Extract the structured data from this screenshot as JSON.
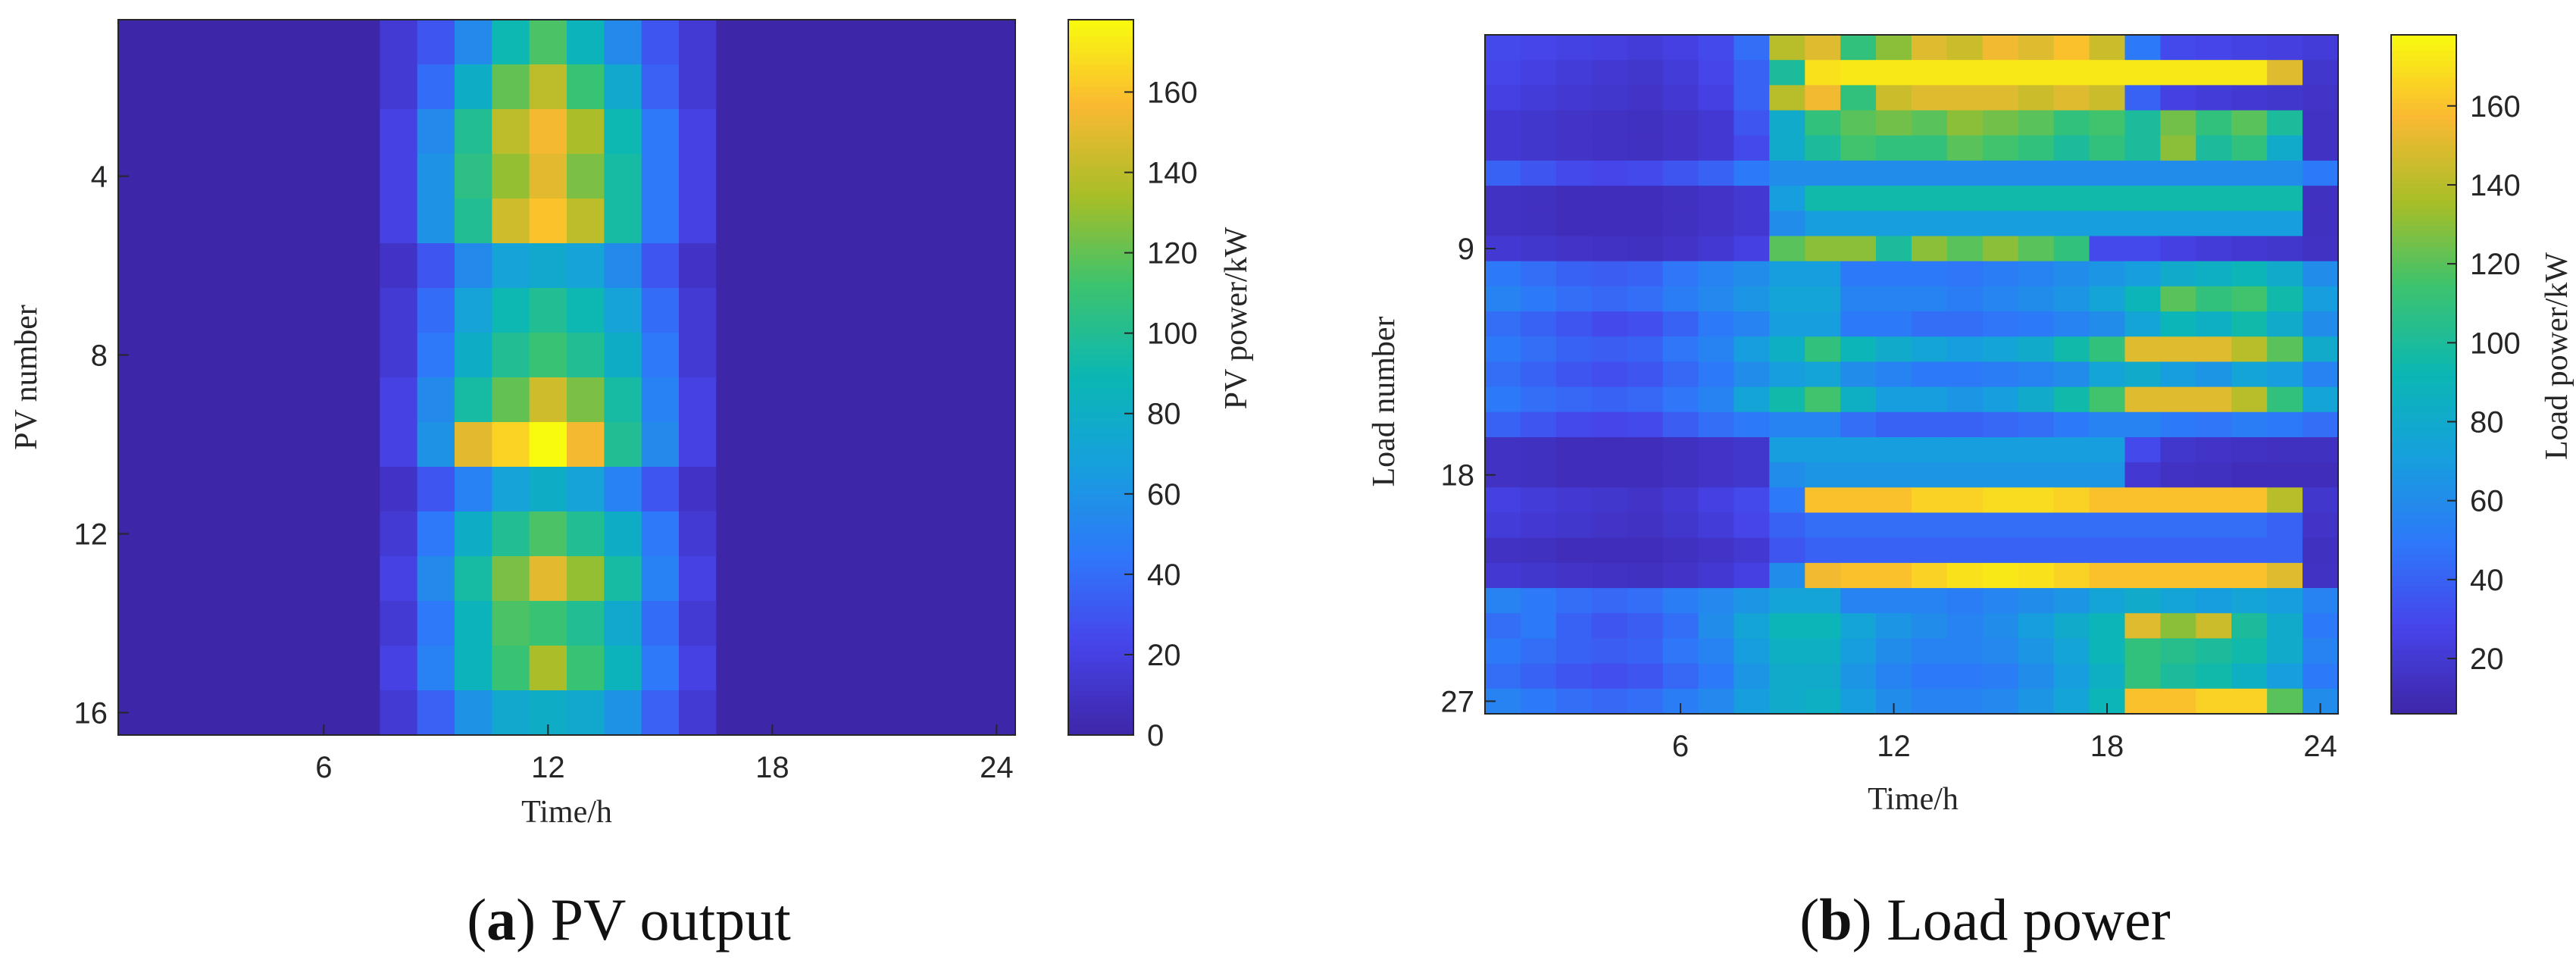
{
  "chart_data": [
    {
      "id": "a",
      "type": "heatmap",
      "caption_letter": "a",
      "caption_open": "(",
      "caption_close": ")",
      "caption_text": " PV output",
      "xlabel": "Time/h",
      "ylabel": "PV number",
      "colorbar_label": "PV power/kW",
      "xlim": [
        0.5,
        24.5
      ],
      "ylim": [
        0.5,
        16.5
      ],
      "xticks": [
        6,
        12,
        18,
        24
      ],
      "yticks": [
        4,
        8,
        12,
        16
      ],
      "color_range": [
        0,
        178
      ],
      "colorbar_ticks": [
        0,
        20,
        40,
        60,
        80,
        100,
        120,
        140,
        160
      ],
      "hours": [
        1,
        2,
        3,
        4,
        5,
        6,
        7,
        8,
        9,
        10,
        11,
        12,
        13,
        14,
        15,
        16,
        17,
        18,
        19,
        20,
        21,
        22,
        23,
        24
      ],
      "rows": [
        [
          0,
          0,
          0,
          0,
          0,
          0,
          0,
          15,
          30,
          55,
          90,
          115,
          85,
          55,
          30,
          15,
          0,
          0,
          0,
          0,
          0,
          0,
          0,
          0
        ],
        [
          0,
          0,
          0,
          0,
          0,
          0,
          0,
          15,
          40,
          80,
          120,
          140,
          110,
          75,
          35,
          15,
          0,
          0,
          0,
          0,
          0,
          0,
          0,
          0
        ],
        [
          0,
          0,
          0,
          0,
          0,
          0,
          0,
          20,
          55,
          100,
          140,
          155,
          135,
          90,
          45,
          20,
          0,
          0,
          0,
          0,
          0,
          0,
          0,
          0
        ],
        [
          0,
          0,
          0,
          0,
          0,
          0,
          0,
          20,
          60,
          105,
          130,
          150,
          125,
          95,
          45,
          20,
          0,
          0,
          0,
          0,
          0,
          0,
          0,
          0
        ],
        [
          0,
          0,
          0,
          0,
          0,
          0,
          0,
          20,
          60,
          100,
          145,
          160,
          140,
          95,
          45,
          20,
          0,
          0,
          0,
          0,
          0,
          0,
          0,
          0
        ],
        [
          0,
          0,
          0,
          0,
          0,
          0,
          0,
          10,
          30,
          55,
          70,
          75,
          70,
          55,
          30,
          10,
          0,
          0,
          0,
          0,
          0,
          0,
          0,
          0
        ],
        [
          0,
          0,
          0,
          0,
          0,
          0,
          0,
          15,
          40,
          70,
          90,
          100,
          90,
          70,
          40,
          15,
          0,
          0,
          0,
          0,
          0,
          0,
          0,
          0
        ],
        [
          0,
          0,
          0,
          0,
          0,
          0,
          0,
          15,
          45,
          80,
          100,
          110,
          100,
          80,
          45,
          15,
          0,
          0,
          0,
          0,
          0,
          0,
          0,
          0
        ],
        [
          0,
          0,
          0,
          0,
          0,
          0,
          0,
          20,
          55,
          95,
          120,
          145,
          125,
          95,
          50,
          20,
          0,
          0,
          0,
          0,
          0,
          0,
          0,
          0
        ],
        [
          0,
          0,
          0,
          0,
          0,
          0,
          0,
          20,
          60,
          150,
          165,
          178,
          155,
          100,
          55,
          20,
          0,
          0,
          0,
          0,
          0,
          0,
          0,
          0
        ],
        [
          0,
          0,
          0,
          0,
          0,
          0,
          0,
          10,
          30,
          50,
          70,
          80,
          70,
          50,
          30,
          10,
          0,
          0,
          0,
          0,
          0,
          0,
          0,
          0
        ],
        [
          0,
          0,
          0,
          0,
          0,
          0,
          0,
          15,
          45,
          80,
          100,
          115,
          100,
          80,
          45,
          15,
          0,
          0,
          0,
          0,
          0,
          0,
          0,
          0
        ],
        [
          0,
          0,
          0,
          0,
          0,
          0,
          0,
          20,
          55,
          95,
          125,
          150,
          130,
          95,
          50,
          20,
          0,
          0,
          0,
          0,
          0,
          0,
          0,
          0
        ],
        [
          0,
          0,
          0,
          0,
          0,
          0,
          0,
          15,
          45,
          85,
          115,
          110,
          100,
          75,
          40,
          15,
          0,
          0,
          0,
          0,
          0,
          0,
          0,
          0
        ],
        [
          0,
          0,
          0,
          0,
          0,
          0,
          0,
          20,
          50,
          85,
          110,
          135,
          110,
          85,
          45,
          20,
          0,
          0,
          0,
          0,
          0,
          0,
          0,
          0
        ],
        [
          0,
          0,
          0,
          0,
          0,
          0,
          0,
          15,
          35,
          60,
          75,
          80,
          75,
          60,
          35,
          15,
          0,
          0,
          0,
          0,
          0,
          0,
          0,
          0
        ]
      ]
    },
    {
      "id": "b",
      "type": "heatmap",
      "caption_letter": "b",
      "caption_open": "(",
      "caption_close": ")",
      "caption_text": " Load power",
      "xlabel": "Time/h",
      "ylabel": "Load number",
      "colorbar_label": "Load power/kW",
      "xlim": [
        0.5,
        24.5
      ],
      "ylim": [
        0.5,
        27.5
      ],
      "xticks": [
        6,
        12,
        18,
        24
      ],
      "yticks": [
        9,
        18,
        27
      ],
      "color_range": [
        6,
        178
      ],
      "colorbar_ticks": [
        20,
        40,
        60,
        80,
        100,
        120,
        140,
        160
      ],
      "hours": [
        1,
        2,
        3,
        4,
        5,
        6,
        7,
        8,
        9,
        10,
        11,
        12,
        13,
        14,
        15,
        16,
        17,
        18,
        19,
        20,
        21,
        22,
        23,
        24
      ],
      "rows": [
        [
          30,
          28,
          26,
          24,
          22,
          25,
          30,
          45,
          140,
          150,
          110,
          130,
          150,
          145,
          155,
          150,
          160,
          145,
          50,
          30,
          28,
          26,
          24,
          22
        ],
        [
          28,
          25,
          22,
          20,
          18,
          22,
          28,
          40,
          100,
          170,
          172,
          172,
          172,
          172,
          172,
          172,
          172,
          172,
          172,
          172,
          172,
          172,
          150,
          18
        ],
        [
          25,
          22,
          20,
          18,
          16,
          20,
          25,
          40,
          140,
          155,
          110,
          145,
          150,
          150,
          150,
          145,
          150,
          145,
          40,
          25,
          22,
          20,
          18,
          16
        ],
        [
          20,
          18,
          16,
          15,
          14,
          16,
          20,
          35,
          80,
          110,
          120,
          125,
          120,
          130,
          125,
          120,
          110,
          115,
          100,
          125,
          110,
          120,
          100,
          15
        ],
        [
          20,
          18,
          16,
          15,
          14,
          16,
          20,
          30,
          80,
          100,
          115,
          110,
          110,
          120,
          115,
          110,
          100,
          110,
          100,
          130,
          100,
          110,
          80,
          15
        ],
        [
          40,
          35,
          30,
          28,
          30,
          35,
          40,
          50,
          60,
          60,
          60,
          60,
          60,
          60,
          60,
          60,
          60,
          60,
          60,
          60,
          60,
          60,
          60,
          50
        ],
        [
          15,
          14,
          12,
          12,
          12,
          14,
          16,
          20,
          70,
          95,
          95,
          95,
          95,
          95,
          95,
          95,
          95,
          95,
          95,
          95,
          95,
          95,
          95,
          14
        ],
        [
          15,
          14,
          12,
          12,
          12,
          14,
          16,
          20,
          60,
          70,
          70,
          70,
          70,
          70,
          70,
          70,
          70,
          70,
          70,
          70,
          70,
          70,
          70,
          14
        ],
        [
          20,
          18,
          16,
          15,
          14,
          16,
          20,
          25,
          120,
          130,
          130,
          100,
          130,
          120,
          130,
          120,
          110,
          30,
          30,
          25,
          22,
          20,
          18,
          15
        ],
        [
          50,
          45,
          40,
          38,
          40,
          48,
          55,
          60,
          70,
          70,
          50,
          50,
          50,
          48,
          52,
          55,
          60,
          65,
          70,
          80,
          85,
          90,
          80,
          60
        ],
        [
          55,
          50,
          45,
          42,
          45,
          52,
          58,
          65,
          75,
          75,
          55,
          55,
          55,
          52,
          56,
          60,
          65,
          75,
          90,
          120,
          110,
          115,
          95,
          70
        ],
        [
          45,
          40,
          35,
          30,
          32,
          40,
          50,
          55,
          70,
          70,
          50,
          50,
          45,
          45,
          48,
          50,
          55,
          60,
          75,
          90,
          85,
          95,
          80,
          60
        ],
        [
          50,
          45,
          40,
          38,
          40,
          48,
          55,
          70,
          85,
          110,
          90,
          80,
          75,
          70,
          75,
          80,
          95,
          110,
          150,
          150,
          150,
          140,
          120,
          80
        ],
        [
          45,
          40,
          35,
          32,
          35,
          42,
          50,
          60,
          70,
          75,
          60,
          55,
          50,
          50,
          52,
          55,
          60,
          75,
          80,
          70,
          65,
          75,
          70,
          55
        ],
        [
          50,
          45,
          42,
          40,
          42,
          48,
          55,
          75,
          95,
          115,
          85,
          70,
          70,
          65,
          70,
          80,
          95,
          115,
          150,
          150,
          150,
          140,
          110,
          75
        ],
        [
          40,
          35,
          30,
          28,
          30,
          38,
          45,
          50,
          55,
          55,
          45,
          40,
          40,
          40,
          42,
          45,
          50,
          55,
          55,
          50,
          48,
          52,
          50,
          45
        ],
        [
          15,
          14,
          12,
          12,
          12,
          14,
          16,
          18,
          70,
          70,
          70,
          70,
          70,
          70,
          70,
          70,
          70,
          70,
          30,
          18,
          16,
          15,
          14,
          14
        ],
        [
          15,
          14,
          12,
          12,
          12,
          14,
          16,
          18,
          60,
          65,
          65,
          65,
          65,
          65,
          65,
          65,
          65,
          65,
          20,
          15,
          14,
          12,
          12,
          12
        ],
        [
          25,
          22,
          20,
          18,
          16,
          20,
          25,
          30,
          50,
          160,
          160,
          160,
          165,
          165,
          168,
          168,
          165,
          160,
          160,
          160,
          160,
          160,
          140,
          18
        ],
        [
          22,
          20,
          18,
          16,
          15,
          18,
          22,
          28,
          40,
          45,
          45,
          45,
          45,
          45,
          45,
          45,
          45,
          45,
          45,
          45,
          45,
          45,
          40,
          16
        ],
        [
          15,
          14,
          12,
          12,
          12,
          14,
          16,
          20,
          35,
          40,
          40,
          40,
          40,
          40,
          40,
          40,
          40,
          40,
          40,
          40,
          40,
          40,
          40,
          14
        ],
        [
          20,
          18,
          16,
          15,
          14,
          16,
          20,
          25,
          60,
          155,
          160,
          160,
          165,
          170,
          172,
          170,
          165,
          160,
          160,
          160,
          160,
          160,
          150,
          15
        ],
        [
          55,
          50,
          45,
          42,
          45,
          52,
          58,
          65,
          75,
          75,
          55,
          55,
          55,
          52,
          56,
          60,
          65,
          75,
          80,
          75,
          70,
          75,
          70,
          55
        ],
        [
          45,
          50,
          40,
          35,
          38,
          45,
          60,
          75,
          90,
          90,
          75,
          65,
          60,
          55,
          60,
          70,
          80,
          90,
          150,
          130,
          145,
          100,
          80,
          50
        ],
        [
          50,
          45,
          40,
          38,
          40,
          48,
          55,
          70,
          85,
          85,
          70,
          60,
          55,
          55,
          58,
          65,
          75,
          90,
          110,
          105,
          100,
          95,
          80,
          55
        ],
        [
          45,
          40,
          35,
          32,
          35,
          42,
          50,
          65,
          80,
          80,
          65,
          55,
          50,
          50,
          52,
          60,
          70,
          85,
          110,
          100,
          95,
          85,
          70,
          50
        ],
        [
          55,
          50,
          45,
          42,
          45,
          52,
          58,
          70,
          80,
          85,
          70,
          60,
          55,
          55,
          58,
          65,
          75,
          90,
          160,
          160,
          165,
          165,
          120,
          60
        ]
      ]
    }
  ]
}
